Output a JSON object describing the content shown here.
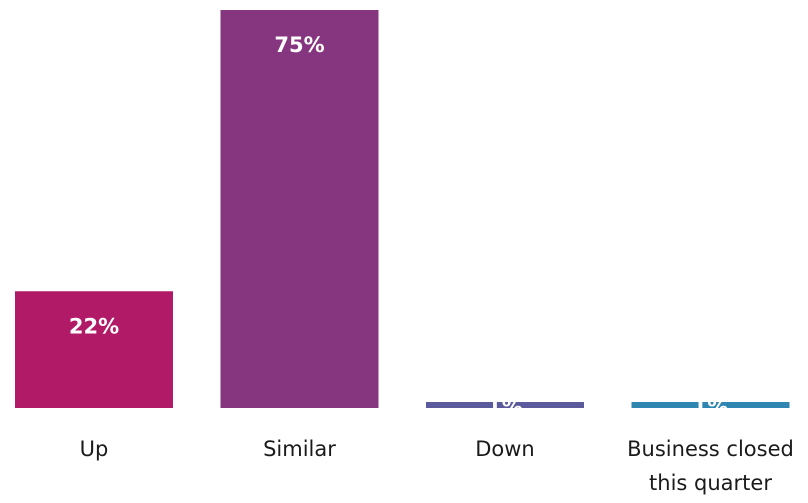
{
  "chart_data": {
    "type": "bar",
    "categories": [
      "Up",
      "Similar",
      "Down",
      "Business closed this quarter"
    ],
    "category_lines": [
      [
        "Up"
      ],
      [
        "Similar"
      ],
      [
        "Down"
      ],
      [
        "Business closed",
        "this quarter"
      ]
    ],
    "values": [
      22,
      75,
      1,
      1
    ],
    "value_labels": [
      "22%",
      "75%",
      "1%",
      "1%"
    ],
    "colors": [
      "#b01a67",
      "#86357f",
      "#5a5a9c",
      "#2f86b1"
    ],
    "ylim": [
      0,
      75
    ],
    "title": "",
    "xlabel": "",
    "ylabel": "",
    "grid": false,
    "legend": "none"
  }
}
